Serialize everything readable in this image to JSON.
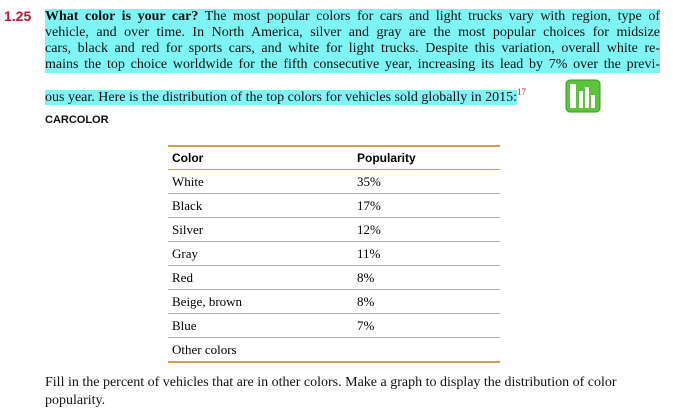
{
  "problem": {
    "number": "1.25",
    "lead": "What color is your car?",
    "lines": [
      " The most popular colors for cars and light trucks vary with region, type of",
      "vehicle, and over time. In North America, silver and gray are the most popular choices for midsize",
      "cars, black and red for sports cars, and white for light trucks. Despite this variation, overall white re-",
      "mains the top choice worldwide for the fifth consecutive year, increasing its lead by 7% over the previ-",
      "ous year. Here is the distribution of the top colors for vehicles sold globally in 2015:"
    ],
    "footnote": "17",
    "dataset": "CARCOLOR"
  },
  "table": {
    "header": [
      "Color",
      "Popularity"
    ],
    "rows": [
      [
        "White",
        "35%"
      ],
      [
        "Black",
        "17%"
      ],
      [
        "Silver",
        "12%"
      ],
      [
        "Gray",
        "11%"
      ],
      [
        "Red",
        "8%"
      ],
      [
        "Beige, brown",
        "8%"
      ],
      [
        "Blue",
        "7%"
      ],
      [
        "Other colors"
      ]
    ]
  },
  "question": {
    "lines": [
      "Fill in the percent of vehicles that are in other colors. Make a graph to display the distribution of color",
      "popularity."
    ]
  }
}
